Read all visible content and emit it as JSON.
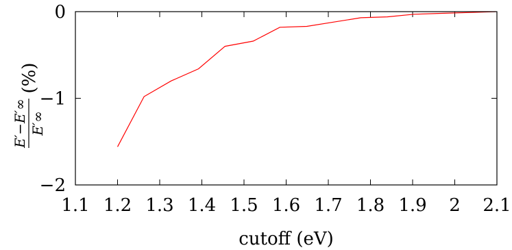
{
  "chart_data": {
    "type": "line",
    "xlabel": "cutoff (eV)",
    "ylabel": {
      "numerator": "E′−E′∞",
      "denominator": "E′∞",
      "suffix": "(%)"
    },
    "xlim": [
      1.1,
      2.1
    ],
    "ylim": [
      -2,
      0
    ],
    "x_ticks": [
      "1.1",
      "1.2",
      "1.3",
      "1.4",
      "1.5",
      "1.6",
      "1.7",
      "1.8",
      "1.9",
      "2",
      "2.1"
    ],
    "y_ticks": [
      "0",
      "−1",
      "−2"
    ],
    "grid": false,
    "series": [
      {
        "color": "#ff0000",
        "x": [
          1.2,
          1.263,
          1.327,
          1.392,
          1.455,
          1.522,
          1.585,
          1.649,
          1.713,
          1.777,
          1.84,
          1.903,
          1.968,
          2.033,
          2.097
        ],
        "y": [
          -1.56,
          -0.98,
          -0.8,
          -0.66,
          -0.4,
          -0.34,
          -0.18,
          -0.17,
          -0.12,
          -0.07,
          -0.06,
          -0.03,
          -0.02,
          -0.01,
          0.0
        ]
      }
    ]
  }
}
